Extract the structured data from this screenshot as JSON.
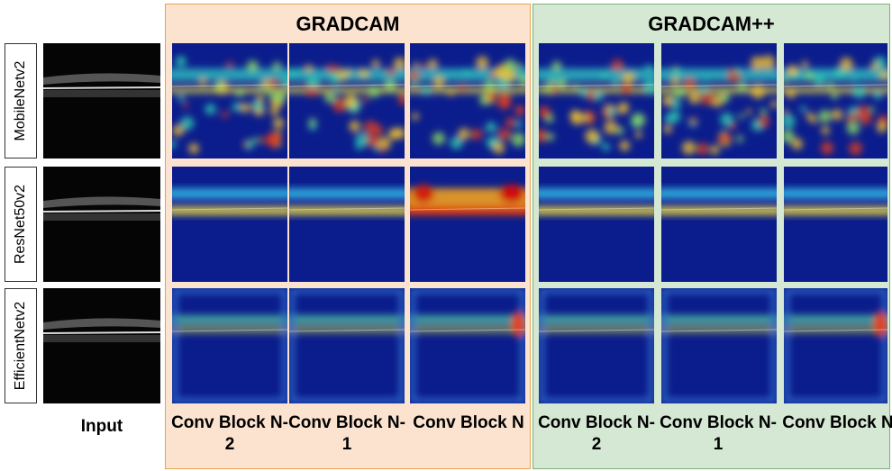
{
  "row_labels": [
    "MobileNetv2",
    "ResNet50v2",
    "EfficientNetv2"
  ],
  "input_label": "Input",
  "panels": [
    {
      "title": "GRADCAM",
      "columns": [
        "Conv Block N-2",
        "Conv Block N-1",
        "Conv Block N"
      ]
    },
    {
      "title": "GRADCAM++",
      "columns": [
        "Conv Block N-2",
        "Conv Block N-1",
        "Conv Block N"
      ]
    }
  ]
}
